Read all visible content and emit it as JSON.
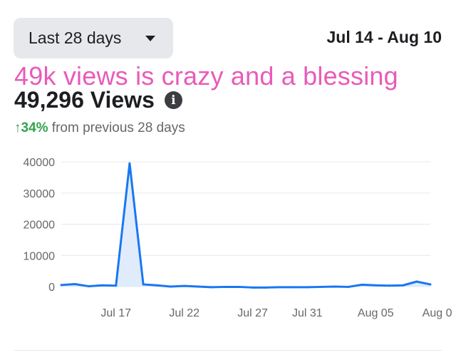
{
  "filter": {
    "label": "Last 28 days",
    "caret_icon": "caret-down-icon"
  },
  "date_range": "Jul 14 - Aug 10",
  "caption": "49k views is crazy and a blessing",
  "summary": {
    "views": "49,296 Views",
    "info_icon": "info-icon",
    "info_glyph": "i",
    "change": "↑34%",
    "change_suffix": " from previous 28 days",
    "change_color": "#31a24c"
  },
  "chart_data": {
    "type": "area",
    "x": [
      "Jul 14",
      "Jul 15",
      "Jul 16",
      "Jul 17",
      "Jul 18",
      "Jul 19",
      "Jul 20",
      "Jul 21",
      "Jul 22",
      "Jul 23",
      "Jul 24",
      "Jul 25",
      "Jul 26",
      "Jul 27",
      "Jul 28",
      "Jul 29",
      "Jul 30",
      "Jul 31",
      "Aug 01",
      "Aug 02",
      "Aug 03",
      "Aug 04",
      "Aug 05",
      "Aug 06",
      "Aug 07",
      "Aug 08",
      "Aug 09",
      "Aug 10"
    ],
    "y": [
      500,
      800,
      100,
      400,
      300,
      39500,
      700,
      400,
      0,
      200,
      0,
      -200,
      -100,
      -100,
      -300,
      -300,
      -200,
      -200,
      -200,
      -100,
      0,
      -100,
      600,
      400,
      300,
      400,
      1600,
      700
    ],
    "yticks": [
      "40000",
      "30000",
      "20000",
      "10000",
      "0"
    ],
    "ytick_values": [
      40000,
      30000,
      20000,
      10000,
      0
    ],
    "xticks": [
      "Jul 17",
      "Jul 22",
      "Jul 27",
      "Jul 31",
      "Aug 05",
      "Aug 0"
    ],
    "xtick_indices": [
      4,
      9,
      14,
      18,
      23,
      27.5
    ],
    "ylim": [
      -4000,
      42000
    ],
    "grid": true,
    "line_color": "#1877f2",
    "fill_color": "#dbe9fc"
  }
}
